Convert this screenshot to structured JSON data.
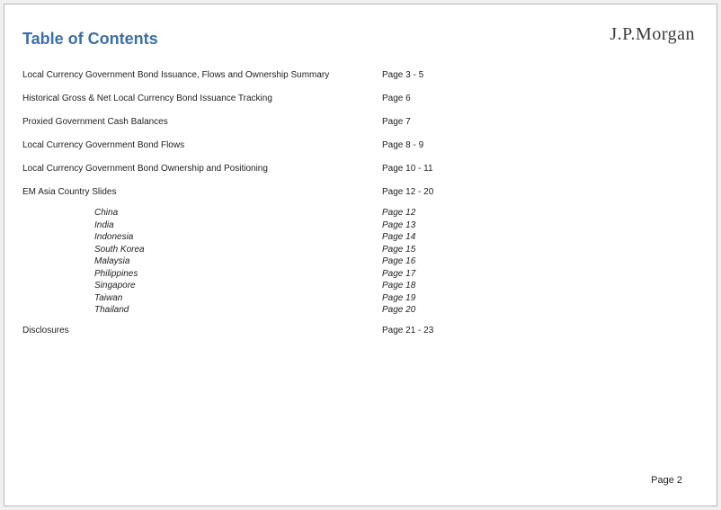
{
  "brand": "J.P.Morgan",
  "title": "Table of Contents",
  "toc": [
    {
      "label": "Local Currency Government Bond Issuance, Flows and Ownership Summary",
      "page": "Page 3 - 5"
    },
    {
      "label": "Historical Gross & Net Local Currency Bond Issuance Tracking",
      "page": "Page 6"
    },
    {
      "label": "Proxied Government Cash Balances",
      "page": "Page 7"
    },
    {
      "label": "Local Currency Government Bond Flows",
      "page": "Page 8 - 9"
    },
    {
      "label": "Local Currency Government Bond Ownership and Positioning",
      "page": "Page 10 - 11"
    },
    {
      "label": "EM Asia Country Slides",
      "page": "Page 12 - 20"
    }
  ],
  "countries": [
    {
      "label": "China",
      "page": "Page 12"
    },
    {
      "label": "India",
      "page": "Page 13"
    },
    {
      "label": "Indonesia",
      "page": "Page 14"
    },
    {
      "label": "South Korea",
      "page": "Page 15"
    },
    {
      "label": "Malaysia",
      "page": "Page 16"
    },
    {
      "label": "Philippines",
      "page": "Page 17"
    },
    {
      "label": "Singapore",
      "page": "Page 18"
    },
    {
      "label": "Taiwan",
      "page": "Page 19"
    },
    {
      "label": "Thailand",
      "page": "Page 20"
    }
  ],
  "disclosures": {
    "label": "Disclosures",
    "page": "Page 21 - 23"
  },
  "footer": "Page 2"
}
